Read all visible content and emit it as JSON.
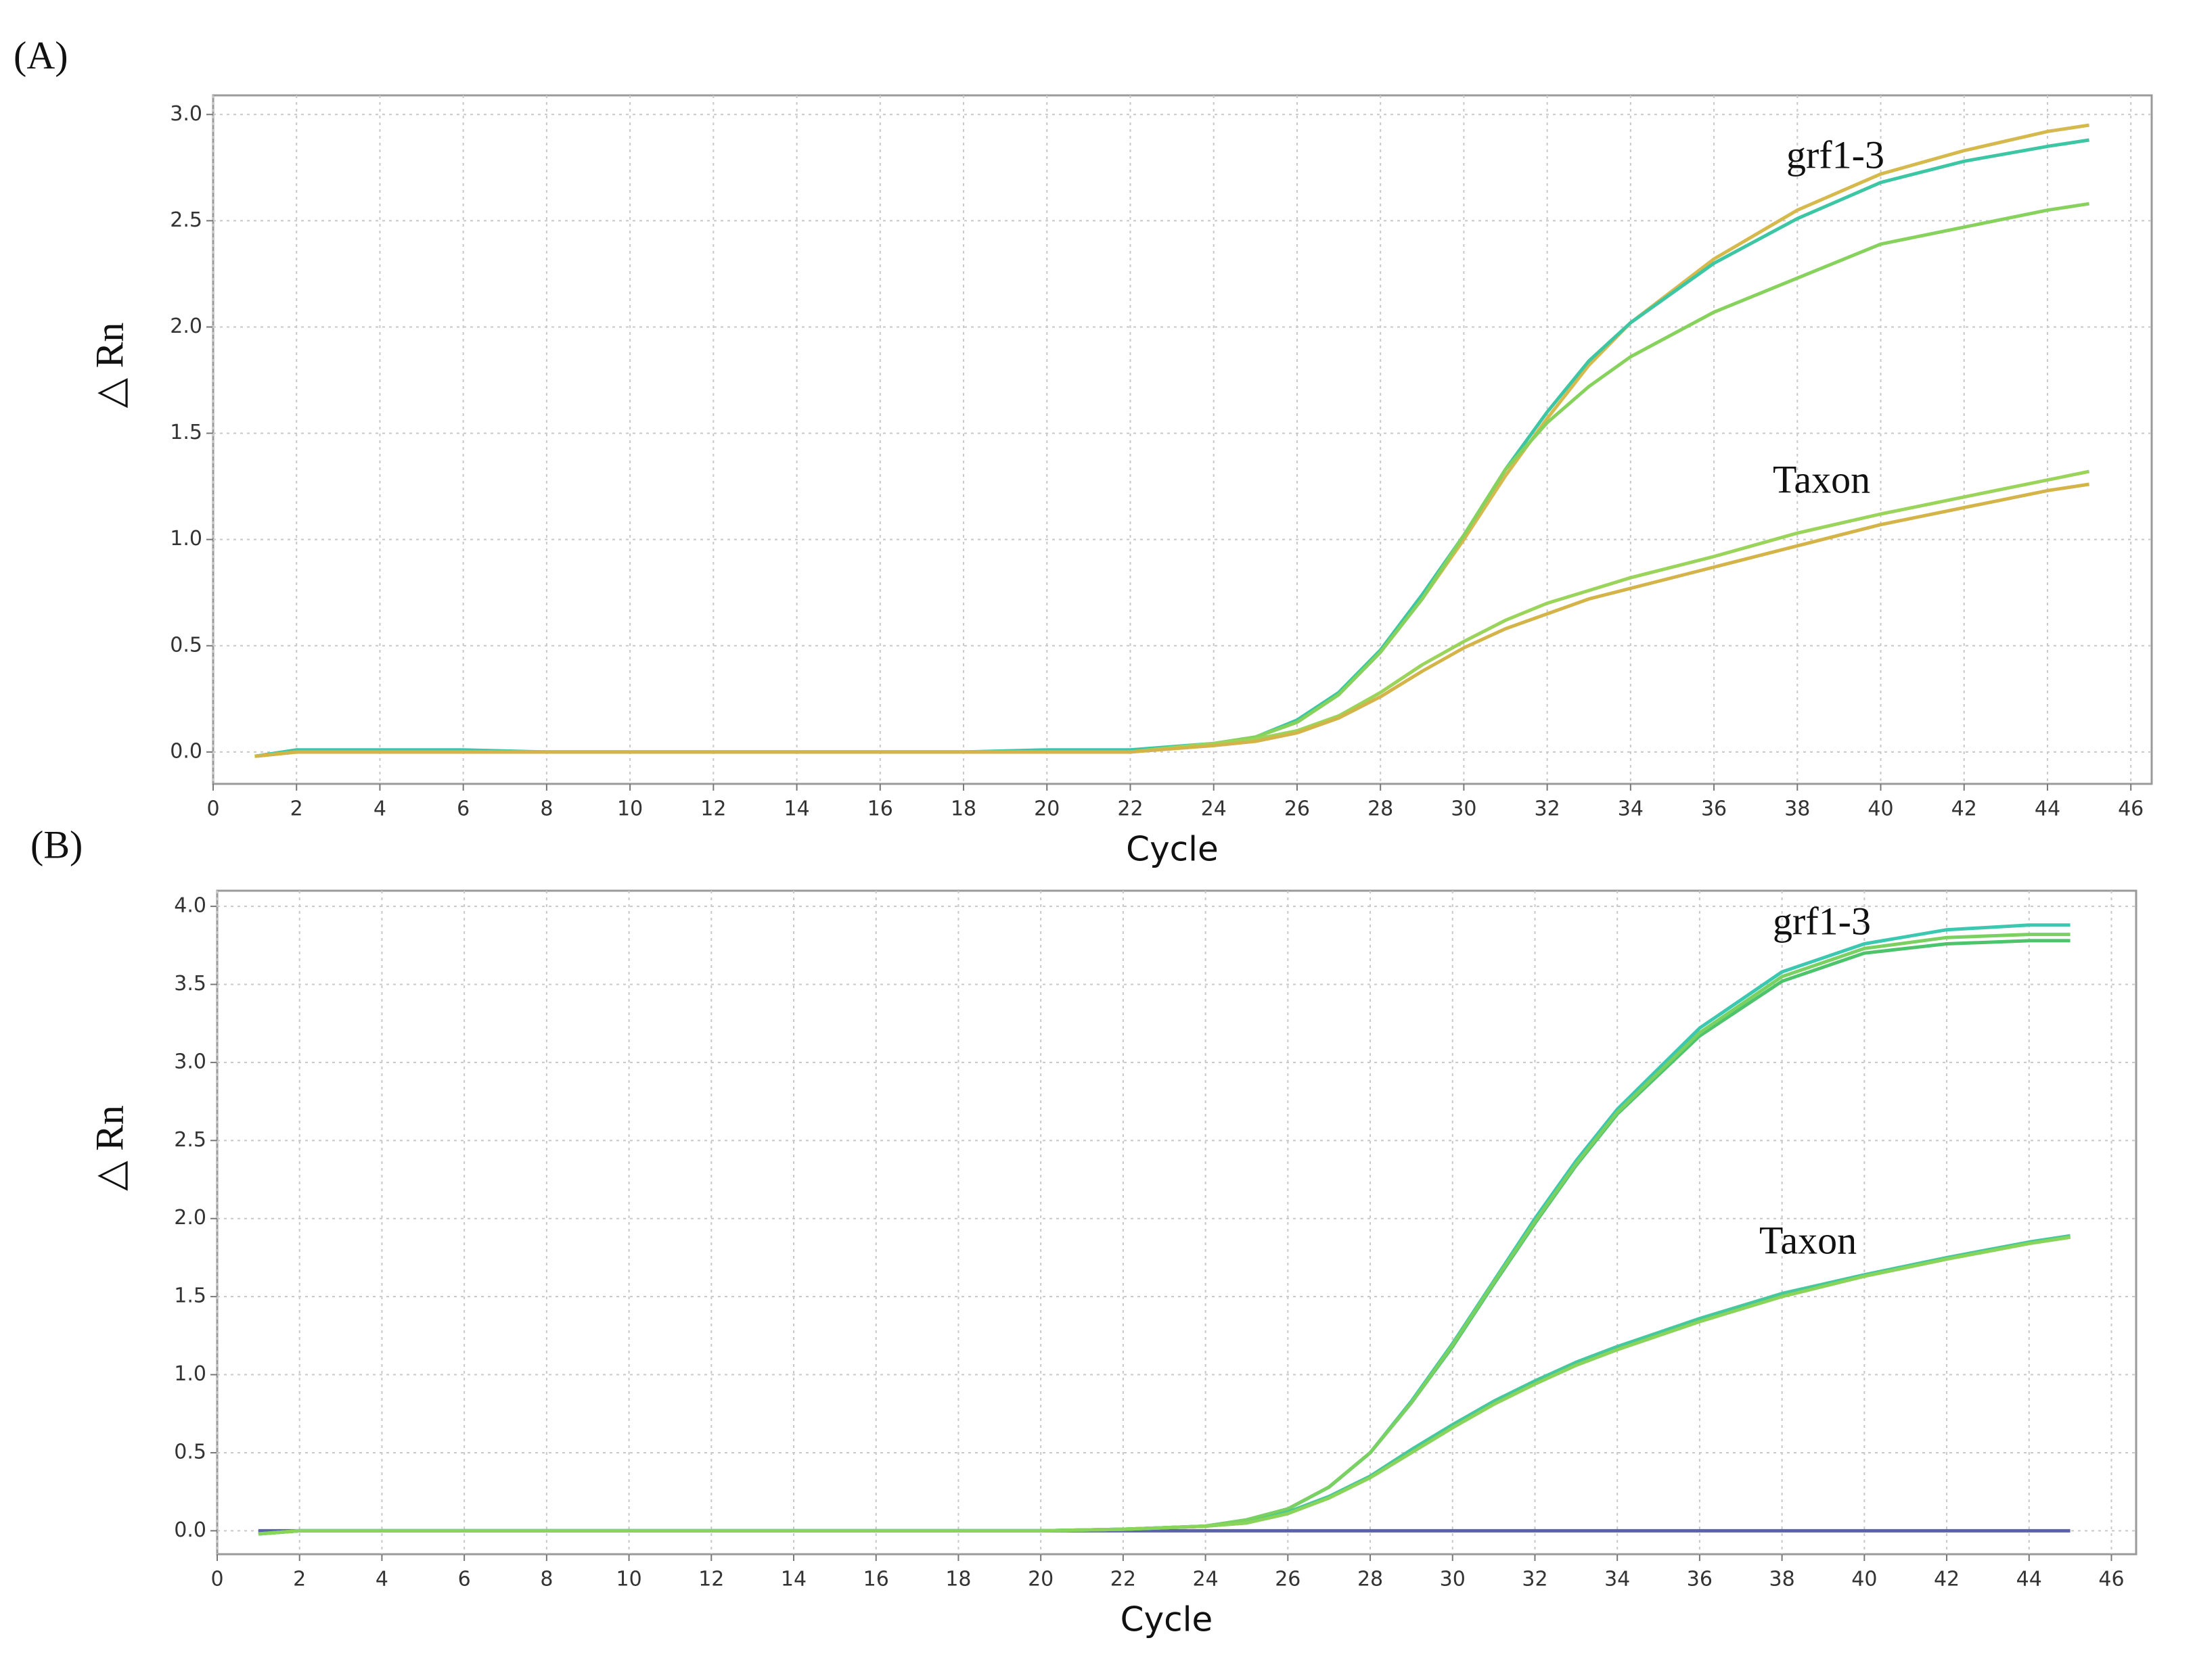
{
  "chart_data": [
    {
      "type": "line",
      "label": "(A)",
      "xlabel": "Cycle",
      "ylabel": "△ Rn",
      "annotations": [
        "grf1-3",
        "Taxon"
      ],
      "xlim": [
        0,
        46.5
      ],
      "ylim": [
        -0.15,
        3.09
      ],
      "xticks": [
        0,
        2,
        4,
        6,
        8,
        10,
        12,
        14,
        16,
        18,
        20,
        22,
        24,
        26,
        28,
        30,
        32,
        34,
        36,
        38,
        40,
        42,
        44,
        46
      ],
      "yticks": [
        {
          "value": 0,
          "label": "0.0"
        },
        0.5,
        {
          "value": 1,
          "label": "1.0"
        },
        1.5,
        {
          "value": 2,
          "label": "2.0"
        },
        2.5,
        {
          "value": 3,
          "label": "3.0"
        }
      ],
      "grid": true,
      "x": [
        1,
        2,
        4,
        6,
        8,
        10,
        12,
        14,
        16,
        18,
        20,
        22,
        24,
        25,
        26,
        27,
        28,
        29,
        30,
        31,
        32,
        33,
        34,
        36,
        38,
        40,
        42,
        44,
        45
      ],
      "series": [
        {
          "color": "#d6b94c",
          "values": [
            -0.02,
            0,
            0,
            0,
            0,
            0,
            0,
            0,
            0,
            0,
            0,
            0,
            0.04,
            0.07,
            0.14,
            0.27,
            0.47,
            0.72,
            1.0,
            1.3,
            1.57,
            1.82,
            2.02,
            2.32,
            2.55,
            2.72,
            2.83,
            2.92,
            2.95
          ]
        },
        {
          "color": "#3cc6a4",
          "values": [
            -0.02,
            0.01,
            0.01,
            0.01,
            0,
            0,
            0,
            0,
            0,
            0,
            0.01,
            0.01,
            0.04,
            0.07,
            0.15,
            0.28,
            0.48,
            0.74,
            1.02,
            1.33,
            1.6,
            1.84,
            2.02,
            2.3,
            2.51,
            2.68,
            2.78,
            2.85,
            2.88
          ]
        },
        {
          "color": "#86d25c",
          "values": [
            -0.02,
            0,
            0,
            0,
            0,
            0,
            0,
            0,
            0,
            0,
            0,
            0,
            0.04,
            0.07,
            0.14,
            0.27,
            0.47,
            0.72,
            1.02,
            1.33,
            1.55,
            1.72,
            1.86,
            2.07,
            2.23,
            2.39,
            2.47,
            2.55,
            2.58
          ]
        },
        {
          "color": "#9ad45a",
          "values": [
            -0.02,
            0,
            0,
            0,
            0,
            0,
            0,
            0,
            0,
            0,
            0,
            0,
            0.04,
            0.06,
            0.1,
            0.17,
            0.28,
            0.41,
            0.52,
            0.62,
            0.7,
            0.76,
            0.82,
            0.92,
            1.03,
            1.12,
            1.2,
            1.28,
            1.32
          ]
        },
        {
          "color": "#d4b448",
          "values": [
            -0.02,
            0,
            0,
            0,
            0,
            0,
            0,
            0,
            0,
            0,
            0,
            0,
            0.03,
            0.05,
            0.09,
            0.16,
            0.26,
            0.38,
            0.49,
            0.58,
            0.65,
            0.72,
            0.77,
            0.87,
            0.97,
            1.07,
            1.15,
            1.23,
            1.26
          ]
        }
      ]
    },
    {
      "type": "line",
      "label": "(B)",
      "xlabel": "Cycle",
      "ylabel": "△ Rn",
      "annotations": [
        "grf1-3",
        "Taxon"
      ],
      "xlim": [
        0,
        46.6
      ],
      "ylim": [
        -0.15,
        4.1
      ],
      "xticks": [
        0,
        2,
        4,
        6,
        8,
        10,
        12,
        14,
        16,
        18,
        20,
        22,
        24,
        26,
        28,
        30,
        32,
        34,
        36,
        38,
        40,
        42,
        44,
        46
      ],
      "yticks": [
        {
          "value": 0,
          "label": "0.0"
        },
        0.5,
        {
          "value": 1,
          "label": "1.0"
        },
        1.5,
        {
          "value": 2,
          "label": "2.0"
        },
        2.5,
        {
          "value": 3,
          "label": "3.0"
        },
        3.5,
        {
          "value": 4,
          "label": "4.0"
        }
      ],
      "grid": true,
      "x": [
        1,
        2,
        4,
        6,
        8,
        10,
        12,
        14,
        16,
        18,
        20,
        22,
        24,
        25,
        26,
        27,
        28,
        29,
        30,
        31,
        32,
        33,
        34,
        36,
        38,
        40,
        42,
        44,
        45
      ],
      "series": [
        {
          "color": "#5b62a8",
          "values": [
            0,
            0,
            0,
            0,
            0,
            0,
            0,
            0,
            0,
            0,
            0,
            0,
            0,
            0,
            0,
            0,
            0,
            0,
            0,
            0,
            0,
            0,
            0,
            0,
            0,
            0,
            0,
            0,
            0
          ]
        },
        {
          "color": "#3cc8b0",
          "values": [
            -0.02,
            0,
            0,
            0,
            0,
            0,
            0,
            0,
            0,
            0,
            0,
            0.01,
            0.03,
            0.07,
            0.14,
            0.28,
            0.5,
            0.83,
            1.2,
            1.6,
            2.0,
            2.37,
            2.7,
            3.22,
            3.58,
            3.76,
            3.85,
            3.88,
            3.88
          ]
        },
        {
          "color": "#4cc46c",
          "values": [
            -0.02,
            0,
            0,
            0,
            0,
            0,
            0,
            0,
            0,
            0,
            0,
            0.01,
            0.03,
            0.07,
            0.14,
            0.28,
            0.5,
            0.82,
            1.18,
            1.58,
            1.97,
            2.34,
            2.67,
            3.17,
            3.52,
            3.7,
            3.76,
            3.78,
            3.78
          ]
        },
        {
          "color": "#7ad060",
          "values": [
            -0.02,
            0,
            0,
            0,
            0,
            0,
            0,
            0,
            0,
            0,
            0,
            0.01,
            0.03,
            0.07,
            0.14,
            0.28,
            0.5,
            0.82,
            1.19,
            1.59,
            1.98,
            2.35,
            2.68,
            3.19,
            3.55,
            3.73,
            3.8,
            3.82,
            3.82
          ]
        },
        {
          "color": "#46c89c",
          "values": [
            -0.02,
            0,
            0,
            0,
            0,
            0,
            0,
            0,
            0,
            0,
            0,
            0.01,
            0.03,
            0.05,
            0.12,
            0.22,
            0.35,
            0.52,
            0.68,
            0.83,
            0.96,
            1.08,
            1.18,
            1.36,
            1.52,
            1.64,
            1.75,
            1.85,
            1.89
          ]
        },
        {
          "color": "#8ad45a",
          "values": [
            -0.02,
            0,
            0,
            0,
            0,
            0,
            0,
            0,
            0,
            0,
            0,
            0.01,
            0.03,
            0.05,
            0.11,
            0.21,
            0.34,
            0.5,
            0.66,
            0.81,
            0.94,
            1.06,
            1.16,
            1.34,
            1.5,
            1.63,
            1.74,
            1.84,
            1.88
          ]
        }
      ]
    }
  ]
}
